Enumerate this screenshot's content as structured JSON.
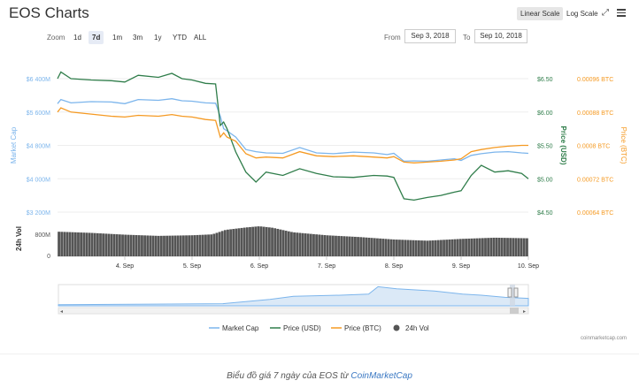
{
  "title": "EOS Charts",
  "toolbar": {
    "linear_label": "Linear Scale",
    "log_label": "Log Scale",
    "expand_icon": "expand-icon",
    "menu_icon": "hamburger-menu-icon"
  },
  "zoom": {
    "label": "Zoom",
    "options": [
      "1d",
      "7d",
      "1m",
      "3m",
      "1y",
      "YTD",
      "ALL"
    ],
    "active": "7d"
  },
  "range": {
    "from_label": "From",
    "from_value": "Sep 3, 2018",
    "to_label": "To",
    "to_value": "Sep 10, 2018"
  },
  "caption": {
    "prefix": "Biểu đồ giá 7 ngày của EOS từ ",
    "link": "CoinMarketCap"
  },
  "credit": "coinmarketcap.com",
  "colors": {
    "market_cap": "#7cb5ec",
    "price_usd": "#2f7d4a",
    "price_btc": "#f59a23",
    "volume": "#555555"
  },
  "chart_data": {
    "type": "line",
    "x_ticks": [
      "4. Sep",
      "5. Sep",
      "6. Sep",
      "7. Sep",
      "8. Sep",
      "9. Sep",
      "10. Sep"
    ],
    "x_range": [
      0,
      7
    ],
    "axes": {
      "market_cap": {
        "title": "Market Cap",
        "ticks": [
          "$6 400M",
          "$5 600M",
          "$4 800M",
          "$4 000M",
          "$3 200M"
        ],
        "range": [
          3200,
          6400
        ]
      },
      "price_usd": {
        "title": "Price (USD)",
        "ticks": [
          "$6.50",
          "$6.00",
          "$5.50",
          "$5.00",
          "$4.50"
        ],
        "range": [
          4.5,
          6.5
        ]
      },
      "price_btc": {
        "title": "Price (BTC)",
        "ticks": [
          "0.00096 BTC",
          "0.00088 BTC",
          "0.0008 BTC",
          "0.00072 BTC",
          "0.00064 BTC"
        ],
        "range": [
          0.00064,
          0.00096
        ]
      },
      "volume": {
        "title": "24h Vol",
        "ticks": [
          "800M",
          "0"
        ],
        "range": [
          0,
          1000
        ]
      }
    },
    "legend": [
      "Market Cap",
      "Price (USD)",
      "Price (BTC)",
      "24h Vol"
    ],
    "legend_position": "bottom",
    "series": [
      {
        "name": "Market Cap",
        "axis": "market_cap",
        "x": [
          0,
          0.05,
          0.2,
          0.5,
          0.8,
          1.0,
          1.2,
          1.5,
          1.7,
          1.85,
          2.0,
          2.2,
          2.35,
          2.42,
          2.47,
          2.52,
          2.65,
          2.8,
          2.95,
          3.1,
          3.35,
          3.6,
          3.85,
          4.1,
          4.4,
          4.7,
          4.9,
          5.0,
          5.15,
          5.3,
          5.5,
          5.7,
          5.9,
          6.0,
          6.15,
          6.3,
          6.5,
          6.7,
          6.9,
          7.0
        ],
        "y": [
          5800,
          5900,
          5820,
          5850,
          5840,
          5800,
          5900,
          5880,
          5920,
          5870,
          5860,
          5820,
          5810,
          5500,
          5200,
          5150,
          5000,
          4700,
          4650,
          4620,
          4610,
          4750,
          4620,
          4600,
          4640,
          4620,
          4580,
          4610,
          4420,
          4430,
          4420,
          4450,
          4480,
          4440,
          4560,
          4600,
          4640,
          4650,
          4620,
          4610
        ]
      },
      {
        "name": "Price (USD)",
        "axis": "price_usd",
        "x": [
          0,
          0.05,
          0.2,
          0.5,
          0.8,
          1.0,
          1.2,
          1.5,
          1.7,
          1.85,
          2.0,
          2.2,
          2.35,
          2.42,
          2.47,
          2.52,
          2.65,
          2.8,
          2.95,
          3.1,
          3.35,
          3.6,
          3.85,
          4.1,
          4.4,
          4.7,
          4.9,
          5.0,
          5.15,
          5.3,
          5.5,
          5.7,
          5.9,
          6.0,
          6.15,
          6.3,
          6.5,
          6.7,
          6.9,
          7.0
        ],
        "y": [
          6.5,
          6.6,
          6.5,
          6.48,
          6.47,
          6.45,
          6.55,
          6.52,
          6.58,
          6.5,
          6.48,
          6.43,
          6.42,
          5.8,
          5.85,
          5.75,
          5.4,
          5.1,
          4.95,
          5.1,
          5.05,
          5.15,
          5.08,
          5.03,
          5.02,
          5.05,
          5.04,
          5.02,
          4.7,
          4.68,
          4.72,
          4.75,
          4.8,
          4.82,
          5.05,
          5.2,
          5.1,
          5.12,
          5.08,
          5.0
        ]
      },
      {
        "name": "Price (BTC)",
        "axis": "price_btc",
        "x": [
          0,
          0.05,
          0.2,
          0.5,
          0.8,
          1.0,
          1.2,
          1.5,
          1.7,
          1.85,
          2.0,
          2.2,
          2.35,
          2.42,
          2.47,
          2.52,
          2.65,
          2.8,
          2.95,
          3.1,
          3.35,
          3.6,
          3.85,
          4.1,
          4.4,
          4.7,
          4.9,
          5.0,
          5.15,
          5.3,
          5.5,
          5.7,
          5.9,
          6.0,
          6.15,
          6.3,
          6.5,
          6.7,
          6.9,
          7.0
        ],
        "y": [
          0.00088,
          0.00089,
          0.00088,
          0.000875,
          0.00087,
          0.000868,
          0.000872,
          0.00087,
          0.000874,
          0.00087,
          0.000868,
          0.000862,
          0.00086,
          0.00082,
          0.00083,
          0.00082,
          0.00081,
          0.00078,
          0.00077,
          0.000772,
          0.00077,
          0.000785,
          0.000775,
          0.000773,
          0.000775,
          0.000772,
          0.00077,
          0.000773,
          0.00076,
          0.000758,
          0.00076,
          0.000762,
          0.000765,
          0.000768,
          0.000785,
          0.00079,
          0.000795,
          0.000798,
          0.0008,
          0.0008
        ]
      },
      {
        "name": "24h Vol",
        "axis": "volume",
        "x": [
          0,
          0.5,
          1.0,
          1.5,
          2.0,
          2.3,
          2.5,
          2.8,
          3.0,
          3.2,
          3.5,
          4.0,
          4.5,
          5.0,
          5.5,
          6.0,
          6.5,
          7.0
        ],
        "y": [
          820,
          780,
          720,
          680,
          700,
          730,
          880,
          960,
          1000,
          950,
          800,
          700,
          640,
          560,
          520,
          580,
          620,
          600
        ]
      }
    ]
  }
}
